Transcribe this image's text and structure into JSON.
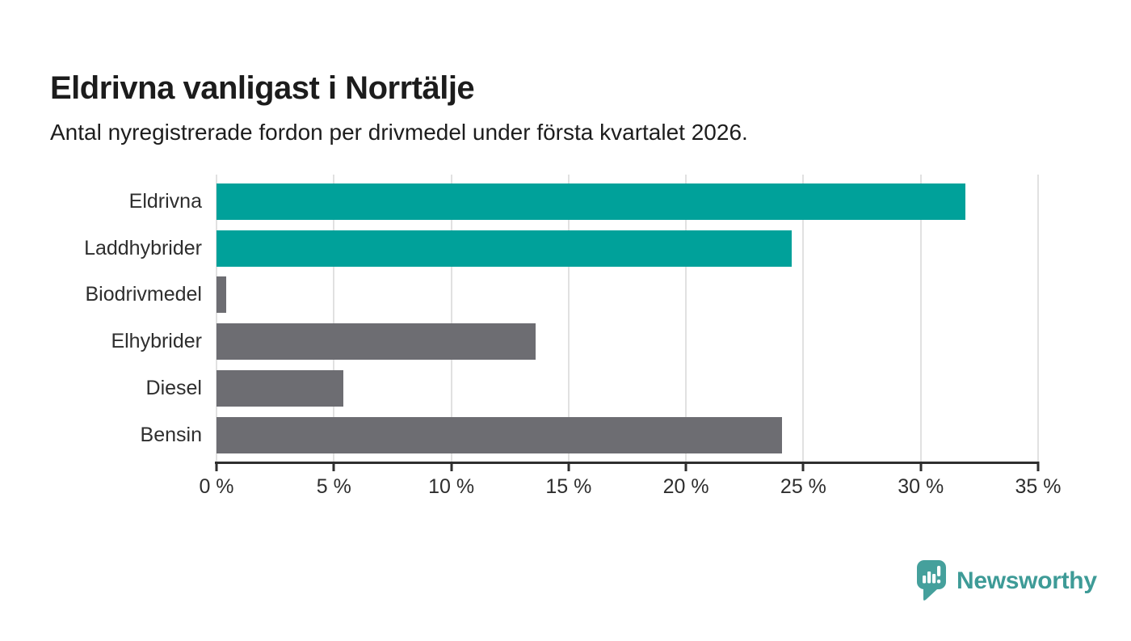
{
  "header": {
    "title": "Eldrivna vanligast i Norrtälje",
    "subtitle": "Antal nyregistrerade fordon per drivmedel under första kvartalet 2026."
  },
  "chart_data": {
    "type": "bar",
    "orientation": "horizontal",
    "title": "Eldrivna vanligast i Norrtälje",
    "subtitle": "Antal nyregistrerade fordon per drivmedel under första kvartalet 2026.",
    "categories": [
      "Eldrivna",
      "Laddhybrider",
      "Biodrivmedel",
      "Elhybrider",
      "Diesel",
      "Bensin"
    ],
    "values": [
      31.9,
      24.5,
      0.4,
      13.6,
      5.4,
      24.1
    ],
    "unit": "%",
    "bar_colors": [
      "#00A19A",
      "#00A19A",
      "#6D6D72",
      "#6D6D72",
      "#6D6D72",
      "#6D6D72"
    ],
    "xlim": [
      0,
      35
    ],
    "x_ticks": [
      {
        "value": 0,
        "label": "0 %"
      },
      {
        "value": 5,
        "label": "5 %"
      },
      {
        "value": 10,
        "label": "10 %"
      },
      {
        "value": 15,
        "label": "15 %"
      },
      {
        "value": 20,
        "label": "20 %"
      },
      {
        "value": 25,
        "label": "25 %"
      },
      {
        "value": 30,
        "label": "30 %"
      },
      {
        "value": 35,
        "label": "35 %"
      }
    ],
    "grid": "vertical-on",
    "legend": "none"
  },
  "colors": {
    "teal_bar": "#00A19A",
    "gray_bar": "#6D6D72",
    "gridline": "#E1E1E1",
    "axis": "#2E2E2E",
    "title_text": "#1C1C1C",
    "label_text": "#2E2E2E",
    "brand_icon_teal": "#45A09C",
    "brand_text_teal": "#3E9B97"
  },
  "footer": {
    "brand_name": "Newsworthy",
    "logo_icon": "speech-bubble-bar-chart-exclamation-icon"
  }
}
